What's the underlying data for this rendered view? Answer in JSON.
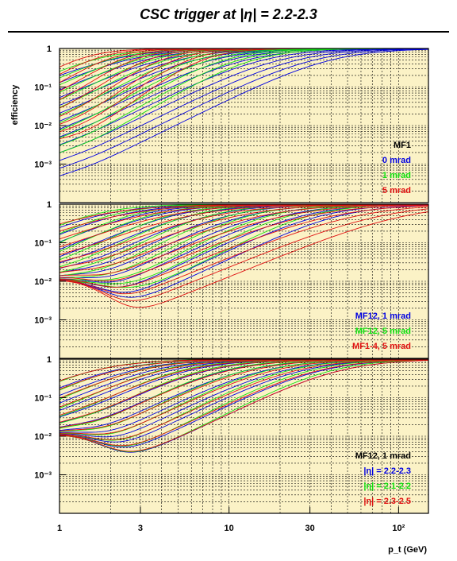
{
  "chart_data": {
    "type": "line",
    "title": "CSC trigger at |η| = 2.2-2.3",
    "xlabel": "p_t (GeV)",
    "ylabel": "efficiency",
    "xscale": "log",
    "yscale": "log",
    "xlim": [
      1,
      150
    ],
    "ylim": [
      0.0001,
      1
    ],
    "x_ticks": [
      "1",
      "3",
      "10",
      "30",
      "10²"
    ],
    "y_ticks": [
      "10⁻³",
      "10⁻²",
      "10⁻¹",
      "1"
    ],
    "grid": true,
    "background": "#fbf2c6",
    "colors": {
      "blue": "#0000e0",
      "green": "#10e010",
      "red": "#e01010",
      "black": "#000000"
    },
    "panels": [
      {
        "legend": [
          {
            "text": "MF1",
            "color": "black"
          },
          {
            "text": "0 mrad",
            "color": "blue"
          },
          {
            "text": "1 mrad",
            "color": "green"
          },
          {
            "text": "5 mrad",
            "color": "red"
          }
        ],
        "groups": [
          {
            "color": "blue",
            "count": 14,
            "start": [
              0.02,
              0.00016
            ],
            "center": [
              2.0,
              40
            ],
            "width": 0.2,
            "min_ratio": 0.1
          },
          {
            "color": "green",
            "count": 12,
            "start": [
              0.03,
              0.0008
            ],
            "center": [
              1.6,
              14
            ],
            "width": 0.17,
            "min_ratio": 0.15
          },
          {
            "color": "red",
            "count": 10,
            "start": [
              0.05,
              0.003
            ],
            "center": [
              1.3,
              7
            ],
            "width": 0.13,
            "min_ratio": 0.3
          }
        ]
      },
      {
        "legend": [
          {
            "text": "MF12, 1 mrad",
            "color": "blue"
          },
          {
            "text": "MF12, 5 mrad",
            "color": "green"
          },
          {
            "text": "MF1-4, 5 mrad",
            "color": "red"
          }
        ],
        "groups": [
          {
            "color": "blue",
            "count": 14,
            "start": [
              0.01,
              0.01
            ],
            "center": [
              1.7,
              45
            ],
            "width": 0.2,
            "min_ratio": 0.08
          },
          {
            "color": "green",
            "count": 12,
            "start": [
              0.01,
              0.01
            ],
            "center": [
              1.5,
              30
            ],
            "width": 0.18,
            "min_ratio": 0.3
          },
          {
            "color": "red",
            "count": 14,
            "start": [
              0.01,
              0.01
            ],
            "center": [
              1.6,
              110
            ],
            "width": 0.24,
            "min_ratio": 0.02
          }
        ]
      },
      {
        "legend": [
          {
            "text": "MF12, 1 mrad",
            "color": "black"
          },
          {
            "text": "|η| = 2.2-2.3",
            "color": "blue"
          },
          {
            "text": "|η| = 2.1-2.2",
            "color": "green"
          },
          {
            "text": "|η| = 2.3-2.5",
            "color": "red"
          }
        ],
        "groups": [
          {
            "color": "blue",
            "count": 14,
            "start": [
              0.01,
              0.01
            ],
            "center": [
              1.6,
              45
            ],
            "width": 0.2,
            "min_ratio": 0.08
          },
          {
            "color": "green",
            "count": 12,
            "start": [
              0.01,
              0.01
            ],
            "center": [
              1.6,
              40
            ],
            "width": 0.19,
            "min_ratio": 0.1
          },
          {
            "color": "red",
            "count": 12,
            "start": [
              0.01,
              0.01
            ],
            "center": [
              1.6,
              45
            ],
            "width": 0.2,
            "min_ratio": 0.1
          }
        ]
      }
    ]
  }
}
